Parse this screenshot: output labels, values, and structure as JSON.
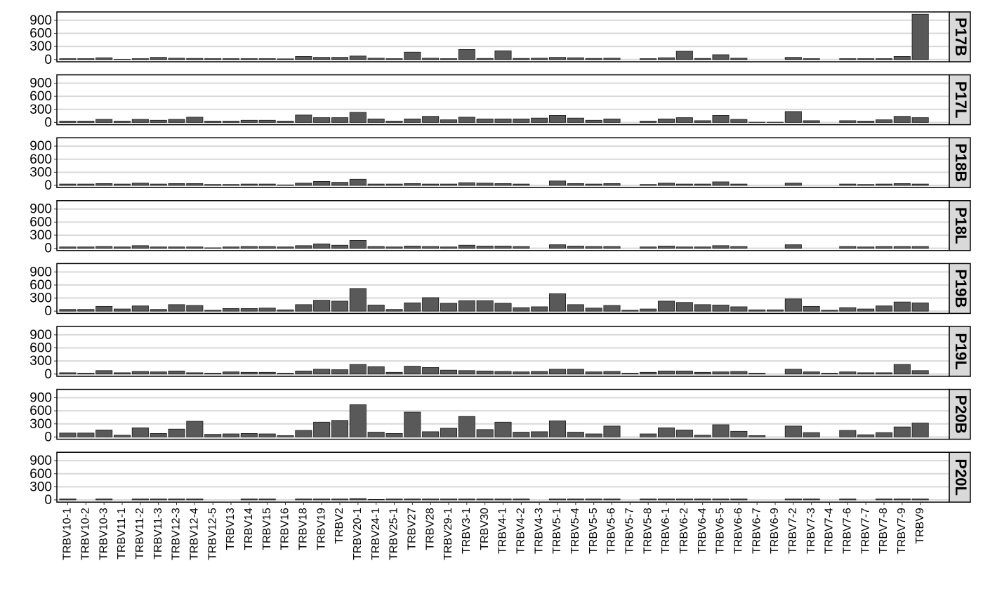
{
  "chart_data": {
    "type": "bar",
    "categories": [
      "TRBV10-1",
      "TRBV10-2",
      "TRBV10-3",
      "TRBV11-1",
      "TRBV11-2",
      "TRBV11-3",
      "TRBV12-3",
      "TRBV12-4",
      "TRBV12-5",
      "TRBV13",
      "TRBV14",
      "TRBV15",
      "TRBV16",
      "TRBV18",
      "TRBV19",
      "TRBV2",
      "TRBV20-1",
      "TRBV24-1",
      "TRBV25-1",
      "TRBV27",
      "TRBV28",
      "TRBV29-1",
      "TRBV3-1",
      "TRBV30",
      "TRBV4-1",
      "TRBV4-2",
      "TRBV4-3",
      "TRBV5-1",
      "TRBV5-4",
      "TRBV5-5",
      "TRBV5-6",
      "TRBV5-7",
      "TRBV5-8",
      "TRBV6-1",
      "TRBV6-2",
      "TRBV6-4",
      "TRBV6-5",
      "TRBV6-6",
      "TRBV6-7",
      "TRBV6-9",
      "TRBV7-2",
      "TRBV7-3",
      "TRBV7-4",
      "TRBV7-6",
      "TRBV7-7",
      "TRBV7-8",
      "TRBV7-9",
      "TRBV9"
    ],
    "series": [
      {
        "name": "P17B",
        "color": "#595959",
        "values": [
          20,
          20,
          40,
          5,
          20,
          50,
          30,
          25,
          20,
          20,
          20,
          20,
          15,
          70,
          50,
          50,
          80,
          30,
          20,
          170,
          30,
          20,
          230,
          25,
          200,
          25,
          30,
          50,
          40,
          25,
          30,
          0,
          20,
          40,
          190,
          25,
          110,
          30,
          0,
          0,
          50,
          20,
          0,
          20,
          20,
          20,
          70,
          1040
        ]
      },
      {
        "name": "P17L",
        "color": "#595959",
        "values": [
          30,
          30,
          70,
          30,
          70,
          50,
          70,
          120,
          30,
          30,
          50,
          50,
          30,
          170,
          110,
          110,
          230,
          80,
          30,
          80,
          140,
          60,
          120,
          80,
          80,
          80,
          100,
          160,
          100,
          50,
          80,
          0,
          30,
          80,
          110,
          40,
          160,
          70,
          5,
          5,
          250,
          40,
          0,
          40,
          30,
          60,
          140,
          110
        ]
      },
      {
        "name": "P18B",
        "color": "#595959",
        "values": [
          30,
          30,
          40,
          30,
          50,
          30,
          40,
          40,
          20,
          20,
          30,
          30,
          10,
          50,
          90,
          70,
          140,
          30,
          30,
          40,
          30,
          30,
          60,
          50,
          40,
          30,
          0,
          100,
          40,
          30,
          40,
          0,
          20,
          50,
          30,
          30,
          80,
          30,
          0,
          0,
          50,
          0,
          0,
          30,
          20,
          30,
          40,
          30
        ]
      },
      {
        "name": "P18L",
        "color": "#595959",
        "values": [
          30,
          30,
          40,
          30,
          60,
          30,
          30,
          30,
          10,
          30,
          40,
          40,
          30,
          60,
          100,
          70,
          180,
          40,
          30,
          50,
          40,
          30,
          70,
          50,
          50,
          40,
          0,
          80,
          50,
          40,
          40,
          0,
          30,
          50,
          30,
          30,
          60,
          40,
          0,
          0,
          80,
          0,
          0,
          40,
          30,
          40,
          40,
          40
        ]
      },
      {
        "name": "P19B",
        "color": "#595959",
        "values": [
          40,
          40,
          110,
          50,
          120,
          40,
          150,
          130,
          20,
          60,
          60,
          70,
          30,
          150,
          250,
          230,
          520,
          140,
          40,
          190,
          310,
          180,
          240,
          240,
          180,
          80,
          100,
          400,
          150,
          70,
          130,
          20,
          50,
          230,
          200,
          150,
          140,
          100,
          30,
          30,
          280,
          110,
          20,
          80,
          50,
          120,
          210,
          190
        ]
      },
      {
        "name": "P19L",
        "color": "#595959",
        "values": [
          30,
          20,
          80,
          30,
          60,
          50,
          70,
          30,
          20,
          50,
          40,
          40,
          20,
          70,
          110,
          100,
          220,
          170,
          40,
          180,
          150,
          90,
          80,
          70,
          60,
          50,
          60,
          110,
          110,
          50,
          60,
          20,
          40,
          70,
          70,
          40,
          50,
          60,
          20,
          0,
          110,
          50,
          20,
          50,
          30,
          30,
          220,
          80
        ]
      },
      {
        "name": "P20B",
        "color": "#595959",
        "values": [
          90,
          90,
          160,
          40,
          210,
          80,
          180,
          360,
          60,
          70,
          80,
          70,
          30,
          150,
          340,
          380,
          740,
          110,
          80,
          570,
          120,
          200,
          470,
          170,
          340,
          110,
          120,
          370,
          110,
          70,
          250,
          0,
          70,
          210,
          160,
          40,
          280,
          130,
          30,
          0,
          250,
          100,
          0,
          150,
          50,
          100,
          230,
          320
        ]
      },
      {
        "name": "P20L",
        "color": "#595959",
        "values": [
          20,
          0,
          20,
          0,
          20,
          20,
          20,
          20,
          0,
          0,
          20,
          20,
          0,
          20,
          20,
          20,
          30,
          10,
          20,
          20,
          20,
          20,
          20,
          20,
          20,
          20,
          0,
          20,
          20,
          20,
          20,
          0,
          20,
          20,
          20,
          20,
          20,
          20,
          0,
          0,
          20,
          20,
          0,
          20,
          0,
          20,
          20,
          20
        ]
      }
    ],
    "ylim": [
      -52,
      1092
    ],
    "yticks": [
      0,
      300,
      600,
      900
    ],
    "grid": true
  }
}
